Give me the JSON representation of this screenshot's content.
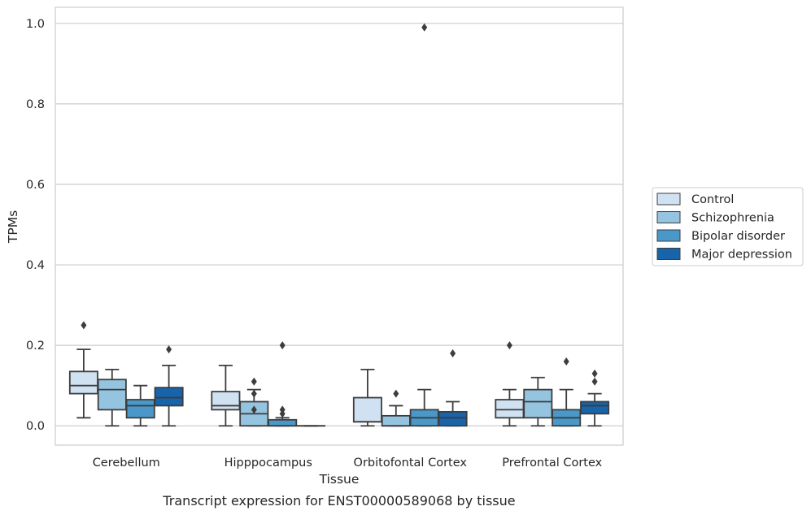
{
  "chart_data": {
    "type": "box",
    "caption": "Transcript expression for ENST00000589068 by tissue",
    "xlabel": "Tissue",
    "ylabel": "TPMs",
    "ylim": [
      -0.048,
      1.04
    ],
    "yticks": [
      0.0,
      0.2,
      0.4,
      0.6,
      0.8,
      1.0
    ],
    "ytick_labels": [
      "0.0",
      "0.2",
      "0.4",
      "0.6",
      "0.8",
      "1.0"
    ],
    "grid": true,
    "legend_position": "right",
    "categories": [
      "Cerebellum",
      "Hipppocampus",
      "Orbitofontal Cortex",
      "Prefrontal Cortex"
    ],
    "series": [
      {
        "name": "Control",
        "color": "#d0e1f2",
        "boxes": [
          {
            "whislo": 0.02,
            "q1": 0.08,
            "med": 0.1,
            "q3": 0.135,
            "whishi": 0.19,
            "fliers": [
              0.25
            ]
          },
          {
            "whislo": 0.0,
            "q1": 0.04,
            "med": 0.05,
            "q3": 0.085,
            "whishi": 0.15,
            "fliers": []
          },
          {
            "whislo": 0.0,
            "q1": 0.01,
            "med": 0.01,
            "q3": 0.07,
            "whishi": 0.14,
            "fliers": []
          },
          {
            "whislo": 0.0,
            "q1": 0.02,
            "med": 0.04,
            "q3": 0.065,
            "whishi": 0.09,
            "fliers": [
              0.2
            ]
          }
        ]
      },
      {
        "name": "Schizophrenia",
        "color": "#94c4df",
        "boxes": [
          {
            "whislo": 0.0,
            "q1": 0.04,
            "med": 0.09,
            "q3": 0.115,
            "whishi": 0.14,
            "fliers": []
          },
          {
            "whislo": 0.0,
            "q1": 0.0,
            "med": 0.03,
            "q3": 0.06,
            "whishi": 0.09,
            "fliers": [
              0.11,
              0.08,
              0.04
            ]
          },
          {
            "whislo": 0.0,
            "q1": 0.0,
            "med": 0.0,
            "q3": 0.025,
            "whishi": 0.05,
            "fliers": [
              0.08
            ]
          },
          {
            "whislo": 0.0,
            "q1": 0.02,
            "med": 0.06,
            "q3": 0.09,
            "whishi": 0.12,
            "fliers": []
          }
        ]
      },
      {
        "name": "Bipolar disorder",
        "color": "#4a98c9",
        "boxes": [
          {
            "whislo": 0.0,
            "q1": 0.02,
            "med": 0.05,
            "q3": 0.065,
            "whishi": 0.1,
            "fliers": []
          },
          {
            "whislo": 0.0,
            "q1": 0.0,
            "med": 0.0,
            "q3": 0.015,
            "whishi": 0.02,
            "fliers": [
              0.2,
              0.04,
              0.03
            ]
          },
          {
            "whislo": 0.0,
            "q1": 0.0,
            "med": 0.02,
            "q3": 0.04,
            "whishi": 0.09,
            "fliers": [
              0.99
            ]
          },
          {
            "whislo": 0.0,
            "q1": 0.0,
            "med": 0.02,
            "q3": 0.04,
            "whishi": 0.09,
            "fliers": [
              0.16
            ]
          }
        ]
      },
      {
        "name": "Major depression",
        "color": "#1764ab",
        "boxes": [
          {
            "whislo": 0.0,
            "q1": 0.05,
            "med": 0.07,
            "q3": 0.095,
            "whishi": 0.15,
            "fliers": [
              0.19
            ]
          },
          {
            "whislo": 0.0,
            "q1": 0.0,
            "med": 0.0,
            "q3": 0.0,
            "whishi": 0.0,
            "fliers": []
          },
          {
            "whislo": 0.0,
            "q1": 0.0,
            "med": 0.02,
            "q3": 0.035,
            "whishi": 0.06,
            "fliers": [
              0.18
            ]
          },
          {
            "whislo": 0.0,
            "q1": 0.03,
            "med": 0.05,
            "q3": 0.06,
            "whishi": 0.08,
            "fliers": [
              0.13,
              0.11
            ]
          }
        ]
      }
    ]
  }
}
